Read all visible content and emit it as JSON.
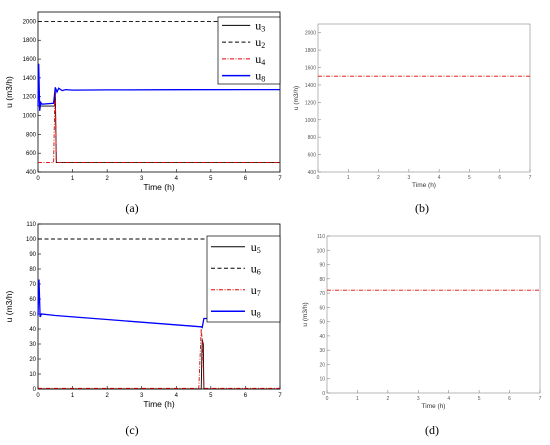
{
  "panels": [
    {
      "key": "a",
      "label": "(a)",
      "chart_data": {
        "type": "line",
        "xlabel": "Time (h)",
        "ylabel": "u (m3/h)",
        "xlim": [
          0,
          7
        ],
        "ylim": [
          400,
          2100
        ],
        "xticks": [
          0,
          1,
          2,
          3,
          4,
          5,
          6,
          7
        ],
        "yticks": [
          400,
          600,
          800,
          1000,
          1200,
          1400,
          1600,
          1800,
          2000
        ],
        "legend_position": "top-right",
        "series": [
          {
            "name": "u3",
            "color": "#000000",
            "dash": "solid",
            "x": [
              0,
              0.48,
              0.5,
              0.53,
              7
            ],
            "y": [
              1100,
              1100,
              1280,
              500,
              500
            ]
          },
          {
            "name": "u2",
            "color": "#000000",
            "dash": "dashed",
            "x": [
              0,
              7
            ],
            "y": [
              2000,
              2000
            ]
          },
          {
            "name": "u4",
            "color": "#e00000",
            "dash": "dashdot",
            "x": [
              0,
              0.45,
              0.48,
              0.5,
              0.53,
              7
            ],
            "y": [
              500,
              500,
              1050,
              1260,
              500,
              500
            ]
          },
          {
            "name": "u8",
            "color": "#0000ff",
            "dash": "solid",
            "x": [
              0,
              0.02,
              0.05,
              0.08,
              0.12,
              0.45,
              0.5,
              0.55,
              0.6,
              0.7,
              0.8,
              1.0,
              2.0,
              4.0,
              7.0
            ],
            "y": [
              1100,
              1550,
              1050,
              1140,
              1120,
              1130,
              1300,
              1250,
              1290,
              1265,
              1275,
              1270,
              1272,
              1274,
              1275
            ]
          }
        ]
      }
    },
    {
      "key": "b",
      "label": "(b)",
      "chart_data": {
        "type": "line",
        "xlabel": "Time (h)",
        "ylabel": "u (m3/h)",
        "xlim": [
          0,
          7
        ],
        "ylim": [
          400,
          2100
        ],
        "xticks": [
          0,
          1,
          2,
          3,
          4,
          5,
          6,
          7
        ],
        "yticks": [
          400,
          600,
          800,
          1000,
          1200,
          1400,
          1600,
          1800,
          2000
        ],
        "series": [
          {
            "name": "",
            "color": "#e00000",
            "dash": "dashdot",
            "x": [
              0,
              7
            ],
            "y": [
              1500,
              1500
            ]
          }
        ]
      }
    },
    {
      "key": "c",
      "label": "(c)",
      "chart_data": {
        "type": "line",
        "xlabel": "Time (h)",
        "ylabel": "u (m3/h)",
        "xlim": [
          0,
          7
        ],
        "ylim": [
          0,
          110
        ],
        "xticks": [
          0,
          1,
          2,
          3,
          4,
          5,
          6,
          7
        ],
        "yticks": [
          0,
          10,
          20,
          30,
          40,
          50,
          60,
          70,
          80,
          90,
          100,
          110
        ],
        "legend_position": "top-right",
        "series": [
          {
            "name": "u5",
            "color": "#000000",
            "dash": "solid",
            "x": [
              0,
              4.72,
              4.75,
              4.78,
              4.8,
              7
            ],
            "y": [
              0,
              0,
              33,
              30,
              0,
              0
            ]
          },
          {
            "name": "u6",
            "color": "#000000",
            "dash": "dashed",
            "x": [
              0,
              7
            ],
            "y": [
              100,
              100
            ]
          },
          {
            "name": "u7",
            "color": "#e00000",
            "dash": "dashdot",
            "x": [
              0,
              4.65,
              4.72,
              4.76,
              4.8,
              7
            ],
            "y": [
              0.5,
              0.5,
              40,
              30,
              0.5,
              0.5
            ]
          },
          {
            "name": "u8",
            "color": "#0000ff",
            "dash": "solid",
            "x": [
              0,
              0.03,
              0.06,
              0.1,
              0.5,
              4.72,
              4.75,
              4.8,
              5.5,
              7
            ],
            "y": [
              49,
              73,
              48,
              50,
              49,
              41.5,
              41,
              47,
              47,
              47
            ]
          }
        ]
      }
    },
    {
      "key": "d",
      "label": "(d)",
      "chart_data": {
        "type": "line",
        "xlabel": "Time (h)",
        "ylabel": "u (m3/h)",
        "xlim": [
          0,
          7
        ],
        "ylim": [
          0,
          110
        ],
        "xticks": [
          0,
          1,
          2,
          3,
          4,
          5,
          6,
          7
        ],
        "yticks": [
          0,
          10,
          20,
          30,
          40,
          50,
          60,
          70,
          80,
          90,
          100,
          110
        ],
        "series": [
          {
            "name": "",
            "color": "#e00000",
            "dash": "dashdot",
            "x": [
              0,
              7
            ],
            "y": [
              72,
              72
            ]
          }
        ]
      }
    }
  ]
}
